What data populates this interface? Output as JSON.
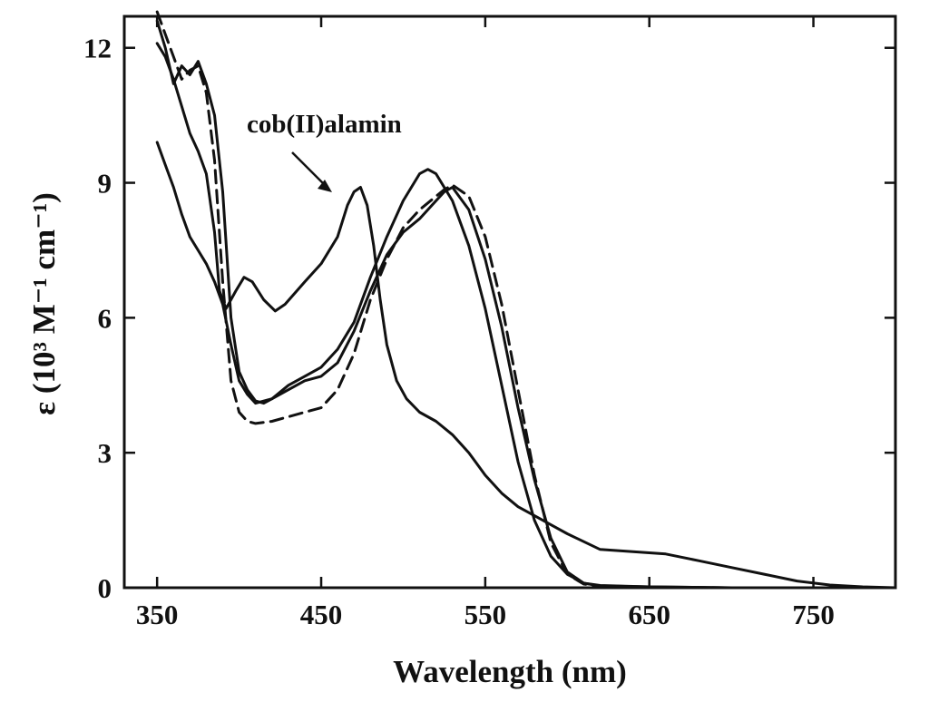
{
  "chart_data": {
    "type": "line",
    "xlabel": "Wavelength (nm)",
    "ylabel": "ε (10³ M⁻¹ cm⁻¹)",
    "xlim": [
      330,
      800
    ],
    "ylim": [
      0,
      12.7
    ],
    "xticks": [
      350,
      450,
      550,
      650,
      750
    ],
    "yticks": [
      0,
      3,
      6,
      9,
      12
    ],
    "grid": false,
    "annotation": {
      "text": "cob(II)alamin",
      "points_to": [
        465,
        8.8
      ]
    },
    "series": [
      {
        "style": "solid",
        "x": [
          350,
          355,
          360,
          365,
          370,
          375,
          380,
          385,
          388,
          392,
          398,
          403,
          408,
          415,
          422,
          428,
          440,
          450,
          460,
          466,
          470,
          474,
          478,
          482,
          486,
          490,
          496,
          502,
          510,
          520,
          530,
          540,
          550,
          560,
          570,
          580,
          585,
          590,
          600,
          620,
          640,
          660,
          680,
          700,
          720,
          740,
          760,
          780,
          800
        ],
        "y": [
          12.1,
          11.8,
          11.3,
          10.7,
          10.1,
          9.7,
          9.2,
          7.9,
          6.6,
          6.2,
          6.6,
          6.9,
          6.8,
          6.4,
          6.15,
          6.3,
          6.8,
          7.2,
          7.8,
          8.5,
          8.8,
          8.9,
          8.5,
          7.6,
          6.4,
          5.4,
          4.6,
          4.2,
          3.9,
          3.7,
          3.4,
          3.0,
          2.5,
          2.1,
          1.8,
          1.6,
          1.5,
          1.4,
          1.2,
          0.85,
          0.8,
          0.75,
          0.6,
          0.45,
          0.3,
          0.15,
          0.06,
          0.02,
          0.0
        ]
      },
      {
        "style": "solid",
        "x": [
          350,
          355,
          360,
          365,
          370,
          375,
          380,
          385,
          390,
          395,
          400,
          405,
          410,
          415,
          420,
          430,
          440,
          450,
          460,
          470,
          480,
          490,
          500,
          510,
          515,
          520,
          530,
          540,
          550,
          560,
          570,
          580,
          590,
          600,
          610,
          620,
          650,
          700,
          750,
          800
        ],
        "y": [
          12.6,
          12.0,
          11.2,
          11.6,
          11.4,
          11.7,
          11.2,
          10.5,
          8.8,
          6.0,
          4.8,
          4.4,
          4.15,
          4.1,
          4.2,
          4.5,
          4.7,
          4.9,
          5.3,
          5.9,
          6.9,
          7.8,
          8.6,
          9.2,
          9.3,
          9.2,
          8.6,
          7.6,
          6.2,
          4.5,
          2.8,
          1.5,
          0.7,
          0.3,
          0.1,
          0.05,
          0.02,
          0.0,
          0.0,
          0.0
        ]
      },
      {
        "style": "solid",
        "x": [
          350,
          355,
          360,
          365,
          370,
          375,
          380,
          385,
          390,
          395,
          400,
          405,
          410,
          420,
          430,
          440,
          450,
          460,
          470,
          480,
          490,
          500,
          510,
          520,
          525,
          530,
          540,
          550,
          560,
          570,
          580,
          590,
          600,
          610,
          620,
          650,
          700,
          750,
          800
        ],
        "y": [
          9.9,
          9.4,
          8.9,
          8.3,
          7.8,
          7.5,
          7.2,
          6.8,
          6.3,
          5.4,
          4.6,
          4.3,
          4.1,
          4.2,
          4.4,
          4.6,
          4.7,
          5.0,
          5.7,
          6.6,
          7.4,
          7.9,
          8.2,
          8.6,
          8.8,
          8.9,
          8.4,
          7.3,
          5.8,
          4.0,
          2.4,
          1.1,
          0.35,
          0.1,
          0.04,
          0.02,
          0.0,
          0.0,
          0.0
        ]
      },
      {
        "style": "dashed",
        "x": [
          350,
          355,
          360,
          365,
          370,
          375,
          380,
          385,
          390,
          395,
          400,
          405,
          410,
          420,
          430,
          440,
          450,
          460,
          470,
          480,
          490,
          500,
          510,
          520,
          525,
          530,
          540,
          550,
          560,
          570,
          580,
          590,
          600,
          610,
          620,
          650,
          700,
          750,
          800
        ],
        "y": [
          12.8,
          12.3,
          11.8,
          11.3,
          11.5,
          11.6,
          11.0,
          9.5,
          6.8,
          4.6,
          3.9,
          3.7,
          3.65,
          3.7,
          3.8,
          3.9,
          4.0,
          4.4,
          5.2,
          6.4,
          7.3,
          8.0,
          8.4,
          8.7,
          8.85,
          8.95,
          8.7,
          7.8,
          6.3,
          4.4,
          2.5,
          1.0,
          0.3,
          0.08,
          0.03,
          0.01,
          0.0,
          0.0,
          0.0
        ]
      }
    ]
  }
}
